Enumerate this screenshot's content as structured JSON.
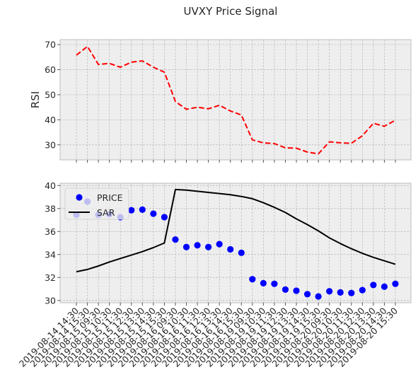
{
  "title": "UVXY Price Signal",
  "chart_data": [
    {
      "type": "line",
      "ylabel": "RSI",
      "ylim": [
        24,
        72
      ],
      "yticks": [
        30,
        40,
        50,
        60,
        70
      ],
      "grid": true,
      "series": [
        {
          "name": "RSI",
          "style": "dashed",
          "color": "#ff0000",
          "values": [
            65.8,
            69.3,
            62.1,
            62.5,
            61.0,
            63.0,
            63.5,
            61.0,
            59.0,
            47.3,
            44.2,
            45.0,
            44.4,
            45.8,
            43.5,
            41.9,
            32.0,
            30.8,
            30.5,
            28.8,
            28.7,
            27.1,
            26.4,
            31.2,
            30.8,
            30.6,
            33.6,
            38.6,
            37.4,
            39.8
          ]
        }
      ]
    },
    {
      "type": "line",
      "ylim": [
        29.8,
        40.2
      ],
      "yticks": [
        30,
        32,
        34,
        36,
        38,
        40
      ],
      "grid": true,
      "legend": "top-left",
      "categories": [
        "2019-08-14 14:30",
        "2019-08-14 15:30",
        "2019-08-15 09:30",
        "2019-08-15 10:30",
        "2019-08-15 11:30",
        "2019-08-15 12:30",
        "2019-08-15 13:30",
        "2019-08-15 14:30",
        "2019-08-15 15:30",
        "2019-08-16 09:30",
        "2019-08-16 10:30",
        "2019-08-16 11:30",
        "2019-08-16 12:30",
        "2019-08-16 13:30",
        "2019-08-16 14:30",
        "2019-08-16 15:30",
        "2019-08-19 09:30",
        "2019-08-19 10:30",
        "2019-08-19 11:30",
        "2019-08-19 12:30",
        "2019-08-19 13:30",
        "2019-08-19 14:30",
        "2019-08-19 15:30",
        "2019-08-20 09:30",
        "2019-08-20 10:30",
        "2019-08-20 11:30",
        "2019-08-20 12:30",
        "2019-08-20 13:30",
        "2019-08-20 14:30",
        "2019-08-20 15:30"
      ],
      "series": [
        {
          "name": "PRICE",
          "style": "markers",
          "color": "#0000ff",
          "values": [
            37.45,
            38.6,
            37.45,
            37.5,
            37.25,
            37.85,
            37.9,
            37.55,
            37.25,
            35.3,
            34.65,
            34.8,
            34.65,
            34.9,
            34.45,
            34.15,
            31.85,
            31.5,
            31.45,
            30.95,
            30.85,
            30.55,
            30.35,
            30.8,
            30.7,
            30.65,
            30.9,
            31.35,
            31.2,
            31.45
          ]
        },
        {
          "name": "SAR",
          "style": "solid",
          "color": "#000000",
          "values": [
            32.5,
            32.7,
            33.0,
            33.35,
            33.65,
            33.95,
            34.25,
            34.6,
            35.0,
            39.65,
            39.6,
            39.5,
            39.4,
            39.3,
            39.2,
            39.05,
            38.85,
            38.5,
            38.1,
            37.65,
            37.1,
            36.6,
            36.05,
            35.45,
            34.95,
            34.5,
            34.1,
            33.75,
            33.45,
            33.15
          ]
        }
      ]
    }
  ]
}
